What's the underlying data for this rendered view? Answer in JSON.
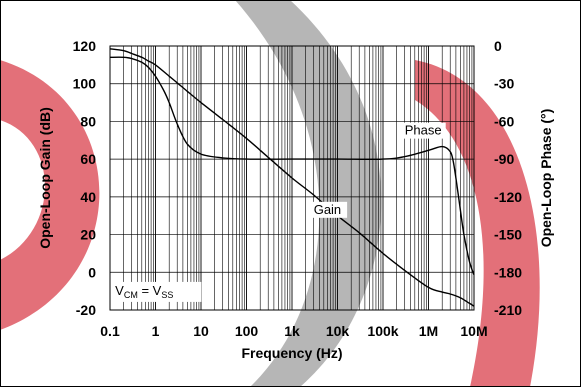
{
  "chart_data": {
    "type": "line",
    "xlabel": "Frequency (Hz)",
    "ylabel_left": "Open-Loop Gain (dB)",
    "ylabel_right": "Open-Loop Phase (°)",
    "x_scale": "log",
    "xlim": [
      0.1,
      10000000
    ],
    "ylim_left": [
      -20,
      120
    ],
    "ylim_right": [
      -210,
      0
    ],
    "x_ticks": [
      {
        "value": 0.1,
        "label": "0.1"
      },
      {
        "value": 1,
        "label": "1"
      },
      {
        "value": 10,
        "label": "10"
      },
      {
        "value": 100,
        "label": "100"
      },
      {
        "value": 1000,
        "label": "1k"
      },
      {
        "value": 10000,
        "label": "10k"
      },
      {
        "value": 100000,
        "label": "100k"
      },
      {
        "value": 1000000,
        "label": "1M"
      },
      {
        "value": 10000000,
        "label": "10M"
      }
    ],
    "y_ticks_left": [
      120,
      100,
      80,
      60,
      40,
      20,
      0,
      -20
    ],
    "y_ticks_right": [
      0,
      -30,
      -60,
      -90,
      -120,
      -150,
      -180,
      -210
    ],
    "grid": true,
    "series": [
      {
        "name": "Gain",
        "axis": "left",
        "x": [
          0.1,
          0.2,
          0.3,
          0.5,
          0.7,
          1,
          2,
          3,
          5,
          10,
          30,
          100,
          300,
          1000,
          3000,
          10000,
          30000,
          100000,
          300000,
          1000000,
          2000000,
          3000000,
          5000000,
          8000000,
          10000000
        ],
        "y": [
          118.5,
          117.5,
          116,
          114,
          112,
          110,
          104,
          100.5,
          96,
          90,
          81,
          71,
          61,
          50,
          41,
          30,
          21,
          10,
          1,
          -8,
          -10.5,
          -11.5,
          -13.5,
          -16.5,
          -18
        ]
      },
      {
        "name": "Phase",
        "axis": "right",
        "x": [
          0.1,
          0.2,
          0.3,
          0.5,
          0.7,
          1,
          1.5,
          2,
          3,
          5,
          10,
          30,
          100,
          1000,
          10000,
          100000,
          300000,
          1000000,
          2000000,
          3000000,
          3500000,
          4000000,
          5000000,
          6000000,
          8000000,
          10000000
        ],
        "y": [
          -9,
          -9,
          -10,
          -13,
          -17,
          -24,
          -35,
          -45,
          -62,
          -78,
          -86,
          -89,
          -90,
          -90,
          -90,
          -90,
          -88,
          -83,
          -80,
          -84,
          -92,
          -105,
          -130,
          -150,
          -172,
          -182
        ]
      }
    ],
    "annotations": [
      {
        "text": "Phase",
        "x": 300000,
        "y_left": 73
      },
      {
        "text": "Gain",
        "x": 3000,
        "y_left": 31
      },
      {
        "text_main": "V",
        "sub1": "CM",
        "eq": " = V",
        "sub2": "SS",
        "x": 0.13,
        "y_left": -12
      }
    ],
    "colors": {
      "line": "#000000",
      "grid": "#000000",
      "watermark_red": "#d9434f",
      "watermark_gray": "#999999"
    }
  }
}
